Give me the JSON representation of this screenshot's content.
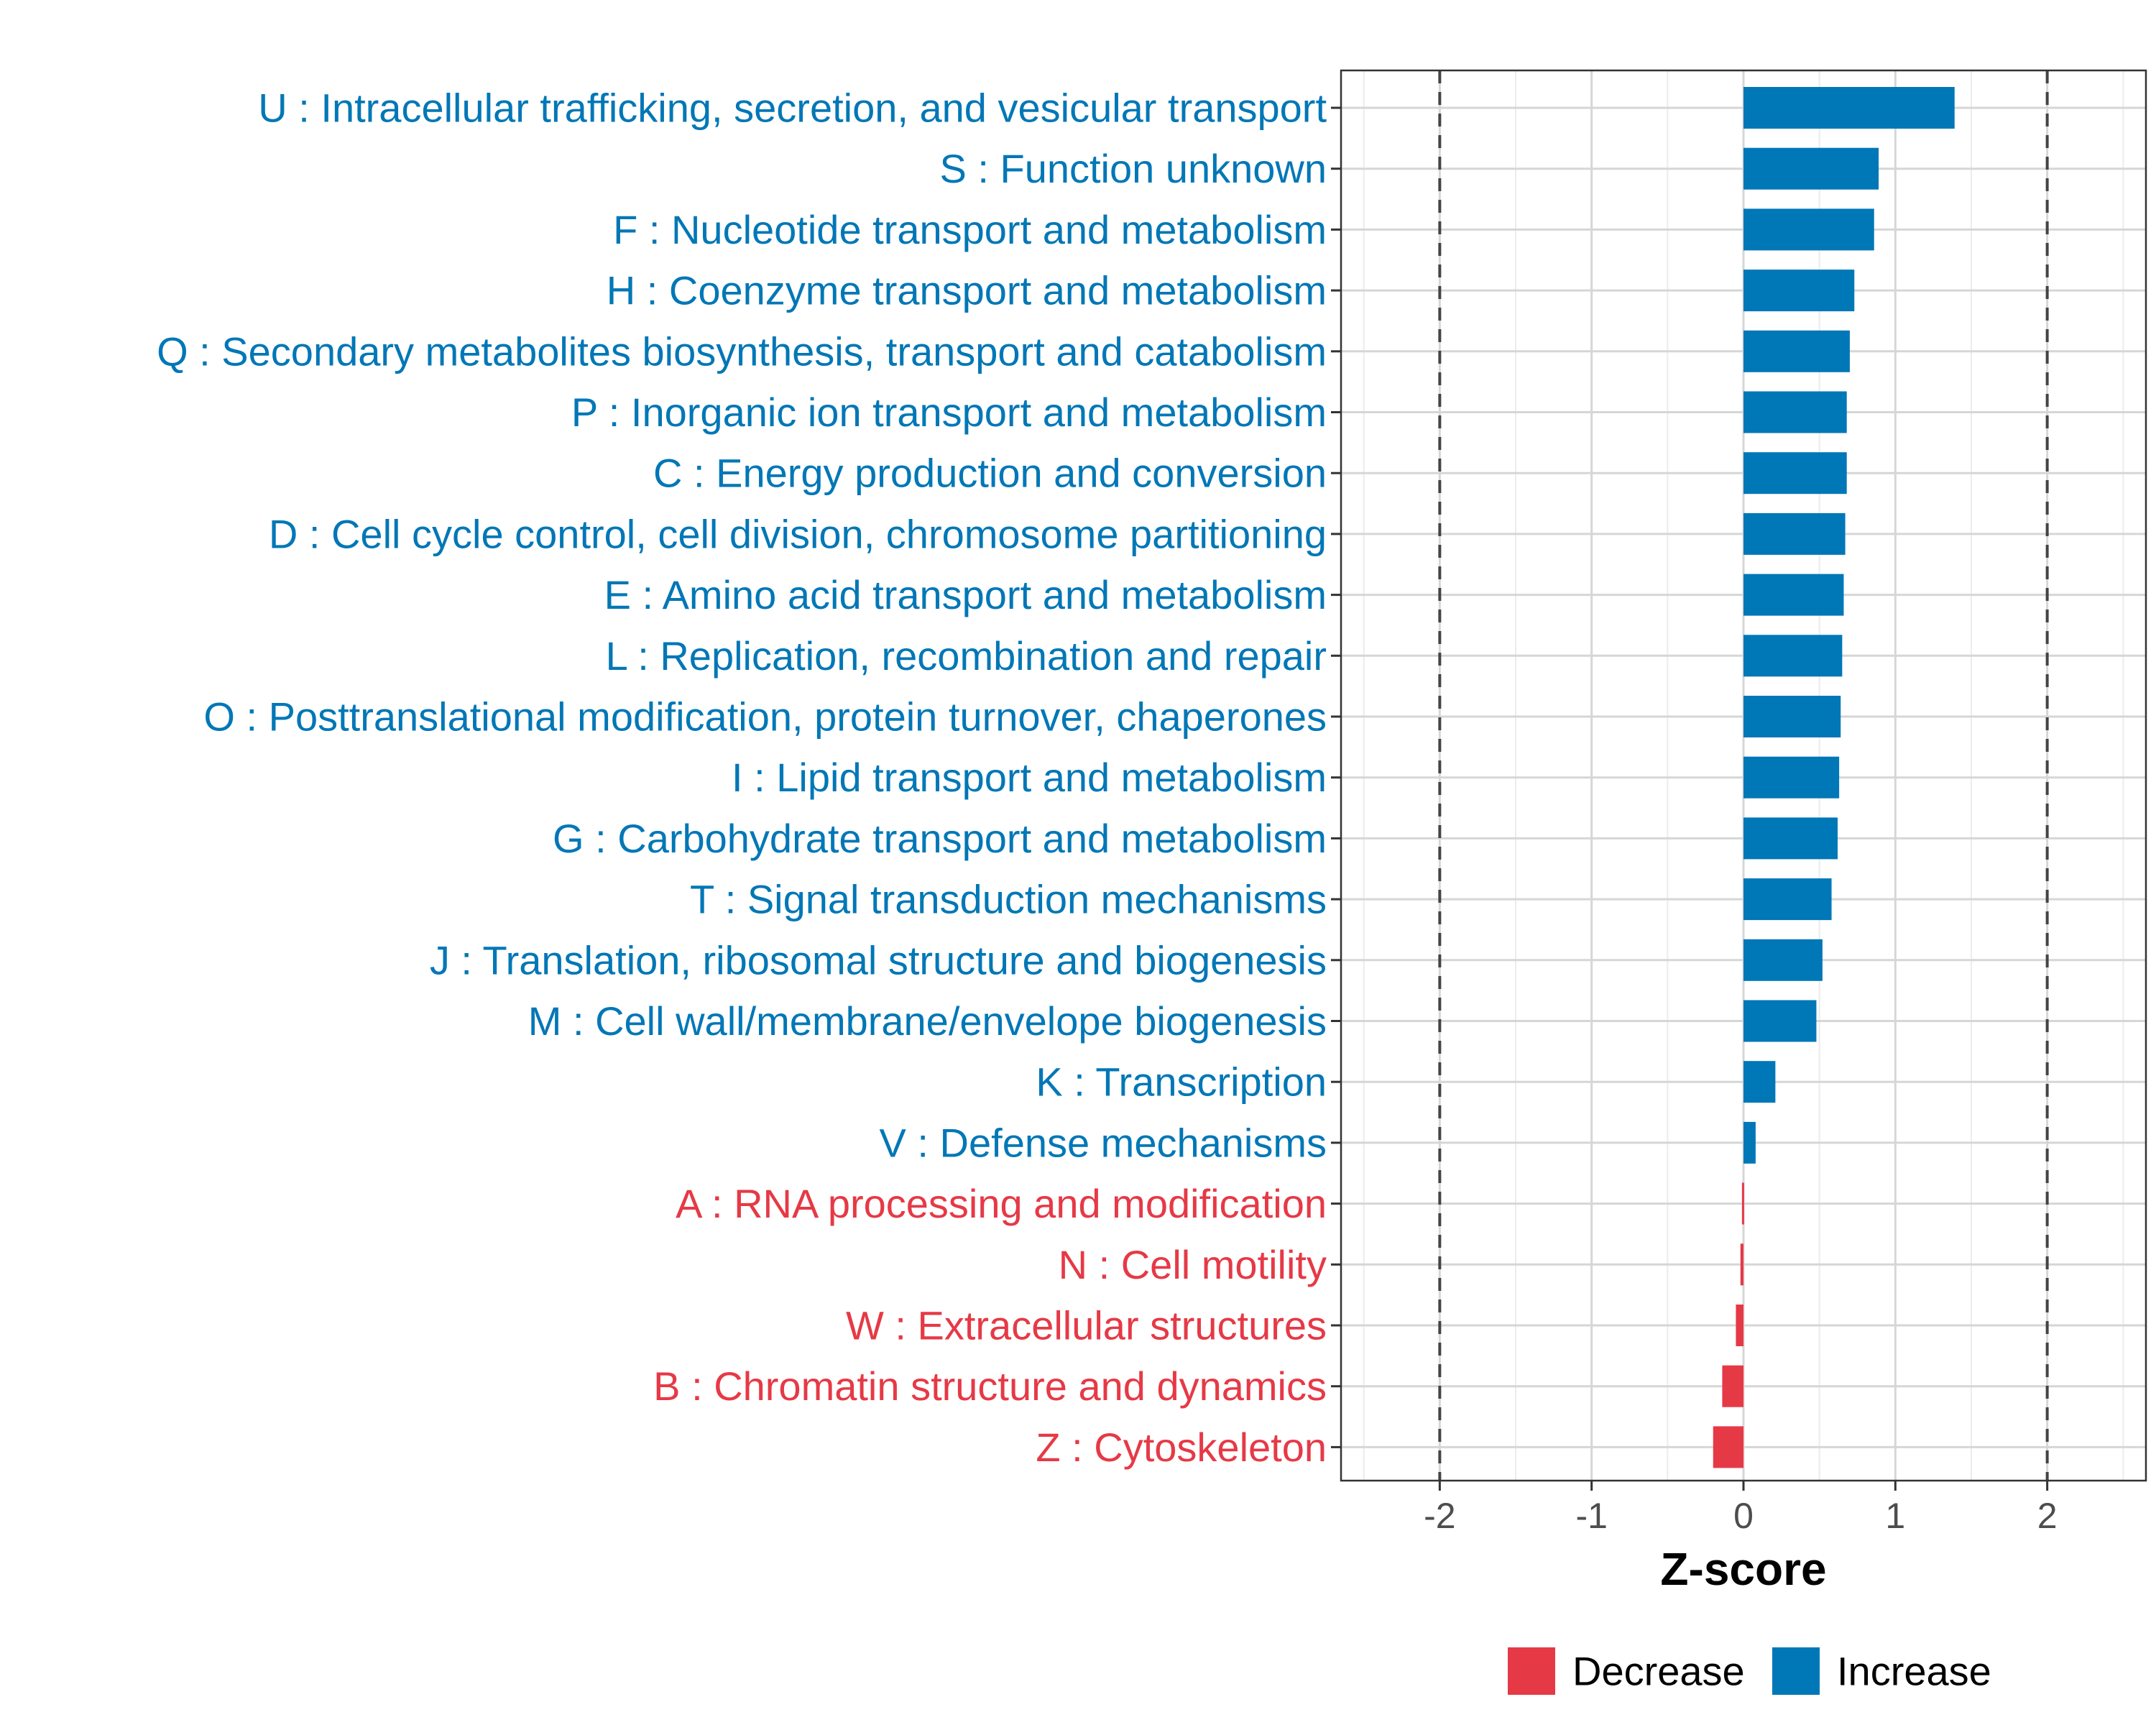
{
  "chart_data": {
    "type": "bar",
    "orientation": "horizontal",
    "title": "",
    "xlabel": "Z-score",
    "ylabel": "",
    "xlim": [
      -2.65,
      2.65
    ],
    "x_ticks": [
      -2,
      -1,
      0,
      1,
      2
    ],
    "x_tick_labels": [
      "-2",
      "-1",
      "0",
      "1",
      "2"
    ],
    "reference_lines": [
      -2,
      2
    ],
    "grid": true,
    "legend_position": "bottom",
    "colors": {
      "Decrease": "#e63946",
      "Increase": "#0077b6"
    },
    "legend": [
      {
        "name": "Decrease",
        "color": "#e63946"
      },
      {
        "name": "Increase",
        "color": "#0077b6"
      }
    ],
    "categories": [
      "U : Intracellular trafficking, secretion, and vesicular transport",
      "S : Function unknown",
      "F : Nucleotide transport and metabolism",
      "H : Coenzyme transport and metabolism",
      "Q : Secondary metabolites biosynthesis, transport and catabolism",
      "P : Inorganic ion transport and metabolism",
      "C : Energy production and conversion",
      "D : Cell cycle control, cell division, chromosome partitioning",
      "E : Amino acid transport and metabolism",
      "L : Replication, recombination and repair",
      "O : Posttranslational modification, protein turnover, chaperones",
      "I : Lipid transport and metabolism",
      "G : Carbohydrate transport and metabolism",
      "T : Signal transduction mechanisms",
      "J : Translation, ribosomal structure and biogenesis",
      "M : Cell wall/membrane/envelope biogenesis",
      "K : Transcription",
      "V : Defense mechanisms",
      "A : RNA processing and modification",
      "N : Cell motility",
      "W : Extracellular structures",
      "B : Chromatin structure and dynamics",
      "Z : Cytoskeleton"
    ],
    "values": [
      1.39,
      0.89,
      0.86,
      0.73,
      0.7,
      0.68,
      0.68,
      0.67,
      0.66,
      0.65,
      0.64,
      0.63,
      0.62,
      0.58,
      0.52,
      0.48,
      0.21,
      0.08,
      -0.01,
      -0.02,
      -0.05,
      -0.14,
      -0.2
    ],
    "direction": [
      "Increase",
      "Increase",
      "Increase",
      "Increase",
      "Increase",
      "Increase",
      "Increase",
      "Increase",
      "Increase",
      "Increase",
      "Increase",
      "Increase",
      "Increase",
      "Increase",
      "Increase",
      "Increase",
      "Increase",
      "Increase",
      "Decrease",
      "Decrease",
      "Decrease",
      "Decrease",
      "Decrease"
    ]
  }
}
